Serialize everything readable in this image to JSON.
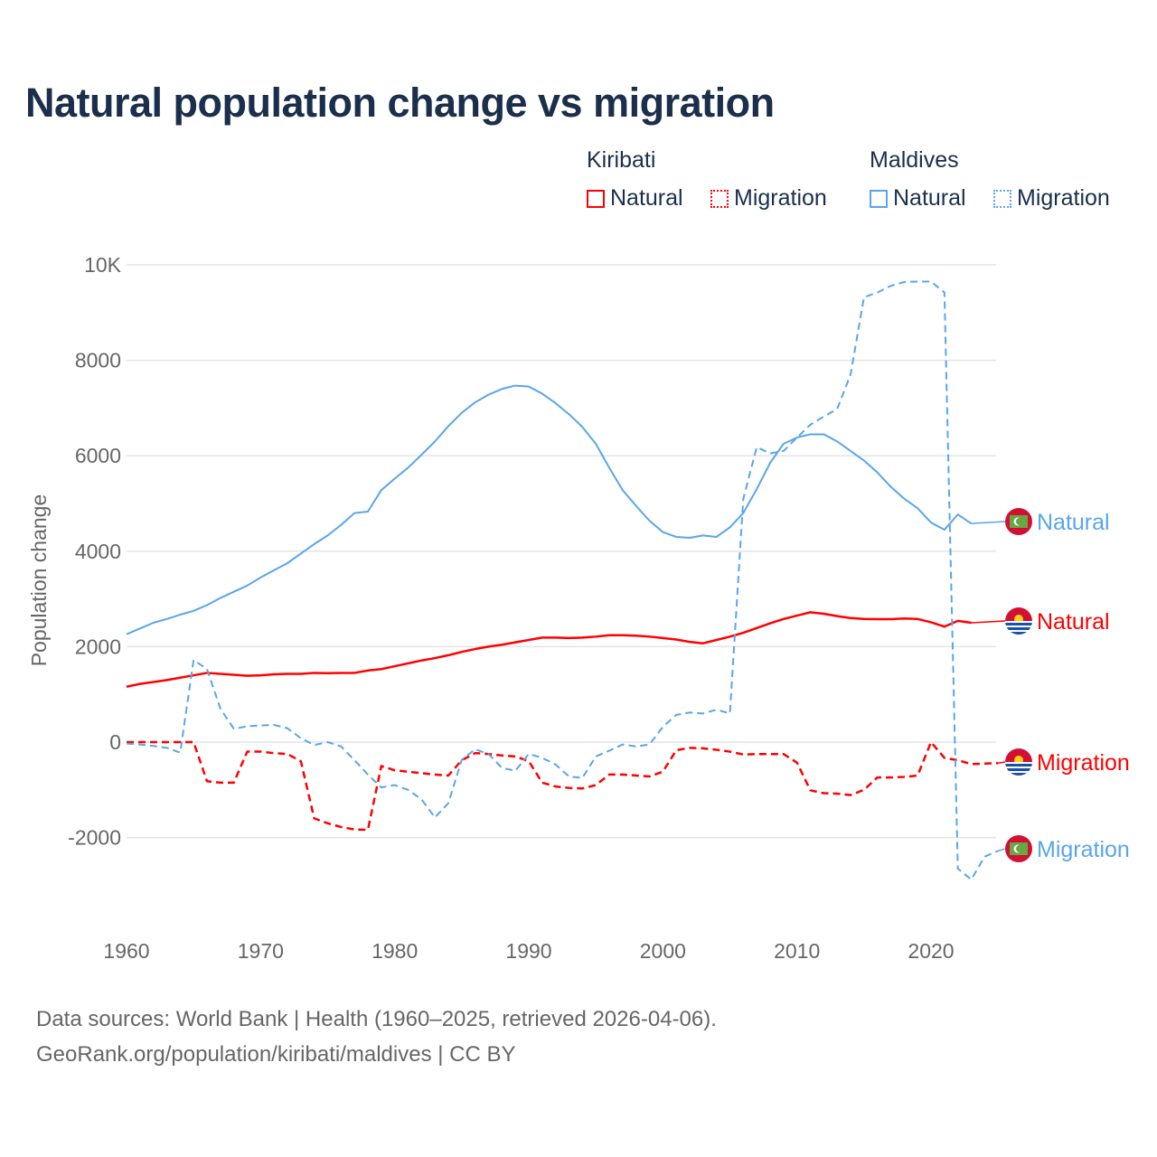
{
  "title": "Natural population change vs migration",
  "legend": {
    "groups": [
      {
        "name": "Kiribati",
        "items": [
          {
            "label": "Natural",
            "style": "solid"
          },
          {
            "label": "Migration",
            "style": "dotted"
          }
        ],
        "color": "#ff0000"
      },
      {
        "name": "Maldives",
        "items": [
          {
            "label": "Natural",
            "style": "solid"
          },
          {
            "label": "Migration",
            "style": "dotted"
          }
        ],
        "color": "#5aa5ea"
      }
    ]
  },
  "source": {
    "line1": "Data sources: World Bank | Health (1960–2025, retrieved 2026-04-06).",
    "line2": "GeoRank.org/population/kiribati/maldives | CC BY"
  },
  "chart_data": {
    "type": "line",
    "title": "Natural population change vs migration",
    "xlabel": "",
    "ylabel": "Population change",
    "xlim": [
      1960,
      2025
    ],
    "ylim": [
      -4000,
      10000
    ],
    "xticks": [
      "1960",
      "1970",
      "1980",
      "1990",
      "2000",
      "2010",
      "2020"
    ],
    "yticks": [
      {
        "v": 10000,
        "label": "10K"
      },
      {
        "v": 8000,
        "label": "8000"
      },
      {
        "v": 6000,
        "label": "6000"
      },
      {
        "v": 4000,
        "label": "4000"
      },
      {
        "v": 2000,
        "label": "2000"
      },
      {
        "v": 0,
        "label": "0"
      },
      {
        "v": -2000,
        "label": "-2000"
      }
    ],
    "grid": true,
    "series": [
      {
        "name": "Maldives Natural",
        "end_label": "Natural",
        "country": "Maldives",
        "color": "#5aa5ea",
        "dash": false,
        "start": 1960,
        "values": [
          2260,
          2380,
          2500,
          2580,
          2670,
          2750,
          2870,
          3020,
          3150,
          3280,
          3450,
          3600,
          3750,
          3950,
          4150,
          4330,
          4550,
          4800,
          4830,
          5280,
          5520,
          5750,
          6020,
          6300,
          6620,
          6900,
          7120,
          7280,
          7400,
          7470,
          7450,
          7300,
          7100,
          6870,
          6600,
          6250,
          5750,
          5280,
          4950,
          4640,
          4400,
          4300,
          4280,
          4330,
          4300,
          4500,
          4800,
          5300,
          5850,
          6250,
          6380,
          6450,
          6450,
          6300,
          6100,
          5900,
          5650,
          5350,
          5100,
          4900,
          4600,
          4450,
          4770,
          4580
        ]
      },
      {
        "name": "Kiribati Natural",
        "end_label": "Natural",
        "country": "Kiribati",
        "color": "#ff0000",
        "dash": false,
        "start": 1960,
        "values": [
          1160,
          1220,
          1260,
          1300,
          1350,
          1400,
          1450,
          1430,
          1410,
          1390,
          1400,
          1420,
          1430,
          1430,
          1450,
          1445,
          1450,
          1450,
          1500,
          1530,
          1590,
          1650,
          1710,
          1760,
          1820,
          1890,
          1950,
          2000,
          2040,
          2090,
          2140,
          2190,
          2190,
          2180,
          2190,
          2210,
          2240,
          2240,
          2230,
          2210,
          2180,
          2150,
          2100,
          2070,
          2140,
          2210,
          2290,
          2390,
          2490,
          2580,
          2650,
          2720,
          2690,
          2640,
          2600,
          2580,
          2575,
          2575,
          2590,
          2580,
          2510,
          2420,
          2540,
          2500
        ]
      },
      {
        "name": "Kiribati Migration",
        "end_label": "Migration",
        "country": "Kiribati",
        "color": "#ff0000",
        "dash": true,
        "start": 1960,
        "values": [
          0,
          0,
          0,
          0,
          0,
          0,
          -820,
          -850,
          -850,
          -200,
          -200,
          -230,
          -250,
          -400,
          -1600,
          -1700,
          -1780,
          -1830,
          -1840,
          -500,
          -590,
          -620,
          -650,
          -680,
          -700,
          -380,
          -230,
          -250,
          -280,
          -300,
          -400,
          -850,
          -930,
          -960,
          -970,
          -900,
          -680,
          -680,
          -700,
          -720,
          -620,
          -170,
          -120,
          -130,
          -160,
          -200,
          -260,
          -250,
          -250,
          -250,
          -430,
          -1010,
          -1070,
          -1080,
          -1110,
          -1000,
          -740,
          -740,
          -730,
          -700,
          0,
          -330,
          -380,
          -460,
          -450,
          -440
        ]
      },
      {
        "name": "Maldives Migration",
        "end_label": "Migration",
        "country": "Maldives",
        "color": "#5aa5ea",
        "dash": true,
        "start": 1960,
        "values": [
          -30,
          -50,
          -80,
          -120,
          -220,
          1720,
          1530,
          700,
          280,
          330,
          350,
          360,
          290,
          80,
          -60,
          0,
          -90,
          -380,
          -680,
          -950,
          -900,
          -1000,
          -1200,
          -1580,
          -1280,
          -370,
          -150,
          -250,
          -540,
          -600,
          -250,
          -330,
          -470,
          -720,
          -750,
          -300,
          -180,
          -50,
          -90,
          -50,
          320,
          570,
          620,
          600,
          680,
          600,
          5100,
          6180,
          6050,
          6100,
          6380,
          6650,
          6820,
          6980,
          7700,
          9320,
          9420,
          9560,
          9640,
          9650,
          9650,
          9420,
          -2650,
          -2880,
          -2400,
          -2280
        ]
      }
    ]
  }
}
